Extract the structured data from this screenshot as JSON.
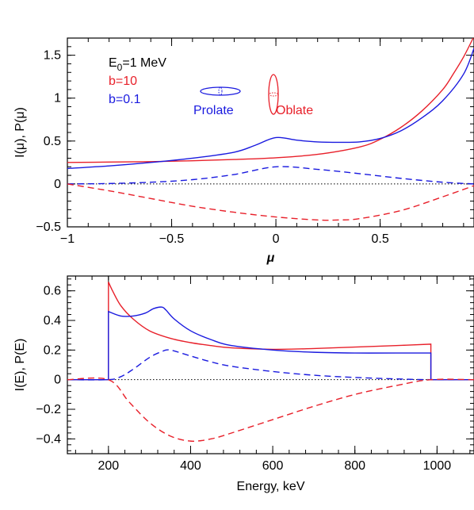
{
  "chart_data": [
    {
      "type": "line",
      "panel": "top",
      "xlabel": "μ",
      "ylabel": "I(μ), P(μ)",
      "xlim": [
        -1,
        0.95
      ],
      "ylim": [
        -0.5,
        1.7
      ],
      "xticks": [
        -1,
        -0.5,
        0,
        0.5
      ],
      "xtick_labels": [
        "−1",
        "−0.5",
        "0",
        "0.5"
      ],
      "yticks": [
        -0.5,
        0,
        0.5,
        1,
        1.5
      ],
      "ytick_labels": [
        "−0.5",
        "0",
        "0.5",
        "1",
        "1.5"
      ],
      "legend": {
        "placement": "top-left",
        "entries": [
          {
            "text_main": "E",
            "text_sub": "0",
            "text_rest": "=1  MeV",
            "color": "#000000"
          },
          {
            "text_main": "b=10",
            "text_sub": "",
            "text_rest": "",
            "color": "#e8202a"
          },
          {
            "text_main": "b=0.1",
            "text_sub": "",
            "text_rest": "",
            "color": "#1a1adf"
          }
        ]
      },
      "annotations": [
        {
          "text": "Prolate",
          "color": "#1a1adf",
          "shape": "prolate-ellipse"
        },
        {
          "text": "Oblate",
          "color": "#e8202a",
          "shape": "oblate-ellipse"
        }
      ],
      "series": [
        {
          "color": "#e8202a",
          "style": "solid",
          "x": [
            -1,
            -0.8,
            -0.6,
            -0.4,
            -0.2,
            0,
            0.2,
            0.4,
            0.5,
            0.6,
            0.7,
            0.8,
            0.85,
            0.9,
            0.95
          ],
          "y": [
            0.25,
            0.255,
            0.26,
            0.27,
            0.285,
            0.305,
            0.345,
            0.43,
            0.52,
            0.66,
            0.85,
            1.1,
            1.28,
            1.48,
            1.72
          ]
        },
        {
          "color": "#1a1adf",
          "style": "solid",
          "x": [
            -1,
            -0.8,
            -0.6,
            -0.4,
            -0.2,
            -0.1,
            0,
            0.1,
            0.2,
            0.3,
            0.4,
            0.5,
            0.6,
            0.7,
            0.8,
            0.9,
            0.95
          ],
          "y": [
            0.18,
            0.21,
            0.25,
            0.3,
            0.37,
            0.45,
            0.54,
            0.51,
            0.49,
            0.485,
            0.49,
            0.53,
            0.62,
            0.77,
            0.97,
            1.28,
            1.58
          ]
        },
        {
          "color": "#1a1adf",
          "style": "dashed",
          "x": [
            -1,
            -0.8,
            -0.6,
            -0.4,
            -0.2,
            0,
            0.2,
            0.4,
            0.6,
            0.8,
            0.95
          ],
          "y": [
            0,
            0.005,
            0.02,
            0.05,
            0.11,
            0.2,
            0.17,
            0.12,
            0.065,
            0.02,
            0
          ]
        },
        {
          "color": "#e8202a",
          "style": "dashed",
          "x": [
            -1,
            -0.8,
            -0.6,
            -0.4,
            -0.2,
            0,
            0.2,
            0.3,
            0.4,
            0.6,
            0.8,
            0.95
          ],
          "y": [
            0,
            -0.08,
            -0.17,
            -0.26,
            -0.33,
            -0.385,
            -0.42,
            -0.42,
            -0.405,
            -0.31,
            -0.15,
            -0.02
          ]
        }
      ]
    },
    {
      "type": "line",
      "panel": "bottom",
      "xlabel": "Energy, keV",
      "ylabel": "I(E), P(E)",
      "xlim": [
        100,
        1090
      ],
      "ylim": [
        -0.5,
        0.7
      ],
      "xticks": [
        200,
        400,
        600,
        800,
        1000
      ],
      "xtick_labels": [
        "200",
        "400",
        "600",
        "800",
        "1000"
      ],
      "yticks": [
        -0.4,
        -0.2,
        0,
        0.2,
        0.4,
        0.6
      ],
      "ytick_labels": [
        "−0.4",
        "−0.2",
        "0",
        "0.2",
        "0.4",
        "0.6"
      ],
      "series": [
        {
          "color": "#e8202a",
          "style": "solid",
          "x": [
            100,
            200,
            200,
            210,
            230,
            260,
            300,
            350,
            400,
            450,
            500,
            600,
            700,
            800,
            900,
            985,
            985,
            1090
          ],
          "y": [
            0,
            0,
            0.66,
            0.6,
            0.5,
            0.41,
            0.33,
            0.28,
            0.25,
            0.23,
            0.215,
            0.205,
            0.21,
            0.22,
            0.23,
            0.24,
            0,
            0
          ]
        },
        {
          "color": "#1a1adf",
          "style": "solid",
          "x": [
            100,
            200,
            200,
            230,
            260,
            290,
            310,
            330,
            340,
            360,
            400,
            450,
            500,
            600,
            700,
            800,
            900,
            985,
            985,
            1090
          ],
          "y": [
            0,
            0,
            0.46,
            0.43,
            0.43,
            0.45,
            0.48,
            0.49,
            0.47,
            0.41,
            0.33,
            0.27,
            0.23,
            0.2,
            0.185,
            0.18,
            0.18,
            0.18,
            0,
            0
          ]
        },
        {
          "color": "#1a1adf",
          "style": "dashed",
          "x": [
            100,
            200,
            230,
            260,
            300,
            330,
            350,
            400,
            450,
            500,
            600,
            700,
            800,
            900,
            985,
            1090
          ],
          "y": [
            0,
            0,
            0.02,
            0.07,
            0.15,
            0.19,
            0.2,
            0.16,
            0.12,
            0.09,
            0.055,
            0.03,
            0.015,
            0.005,
            0,
            0
          ]
        },
        {
          "color": "#e8202a",
          "style": "dashed",
          "x": [
            100,
            200,
            250,
            300,
            350,
            400,
            450,
            500,
            600,
            700,
            800,
            900,
            985,
            1090
          ],
          "y": [
            0,
            0,
            -0.15,
            -0.29,
            -0.38,
            -0.415,
            -0.4,
            -0.36,
            -0.27,
            -0.18,
            -0.1,
            -0.04,
            0,
            0
          ]
        }
      ]
    }
  ]
}
